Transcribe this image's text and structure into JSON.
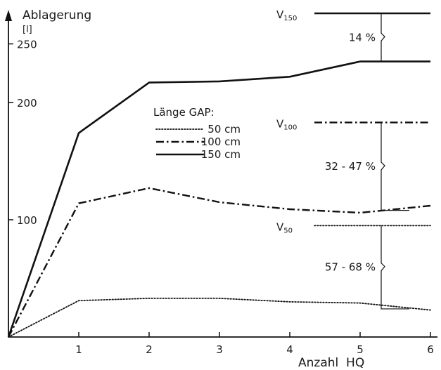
{
  "chart_data": {
    "type": "line",
    "ylabel": "Ablagerung",
    "yunit": "[l]",
    "xlabel": "Anzahl  HQ",
    "xlim": [
      0,
      6
    ],
    "ylim": [
      0,
      270
    ],
    "xticks": [
      "1",
      "2",
      "3",
      "4",
      "5",
      "6"
    ],
    "yticks": [
      {
        "value": 100,
        "label": "100"
      },
      {
        "value": 200,
        "label": "200"
      },
      {
        "value": 250,
        "label": "250"
      }
    ],
    "legend_title": "Länge GAP:",
    "legend_placement": "center",
    "series": [
      {
        "name": "50 cm",
        "style": "dotted",
        "x": [
          0,
          1,
          2,
          3,
          4,
          5,
          6
        ],
        "y": [
          0,
          31,
          33,
          33,
          30,
          29,
          23
        ]
      },
      {
        "name": "100 cm",
        "style": "dashdot",
        "x": [
          0,
          1,
          2,
          3,
          4,
          5,
          6
        ],
        "y": [
          0,
          114,
          127,
          115,
          109,
          106,
          112
        ]
      },
      {
        "name": "150 cm",
        "style": "solid",
        "x": [
          0,
          1,
          2,
          3,
          4,
          5,
          6
        ],
        "y": [
          0,
          174,
          217,
          218,
          222,
          235,
          235
        ]
      }
    ],
    "reference_lines": [
      {
        "label": "V",
        "sub": "150",
        "style": "solid",
        "y": 280,
        "x_start": 4.35,
        "x_end": 6
      },
      {
        "label": "V",
        "sub": "100",
        "style": "dashdot",
        "y": 183,
        "x_start": 4.35,
        "x_end": 6
      },
      {
        "label": "V",
        "sub": "50",
        "style": "dotted",
        "y": 95,
        "x_start": 4.35,
        "x_end": 6
      }
    ],
    "annotations": [
      {
        "text": "14 %",
        "y_top": 280,
        "y_bottom": 235
      },
      {
        "text": "32 - 47 %",
        "y_top": 183,
        "y_bottom": 108
      },
      {
        "text": "57 - 68 %",
        "y_top": 95,
        "y_bottom": 24
      }
    ]
  }
}
